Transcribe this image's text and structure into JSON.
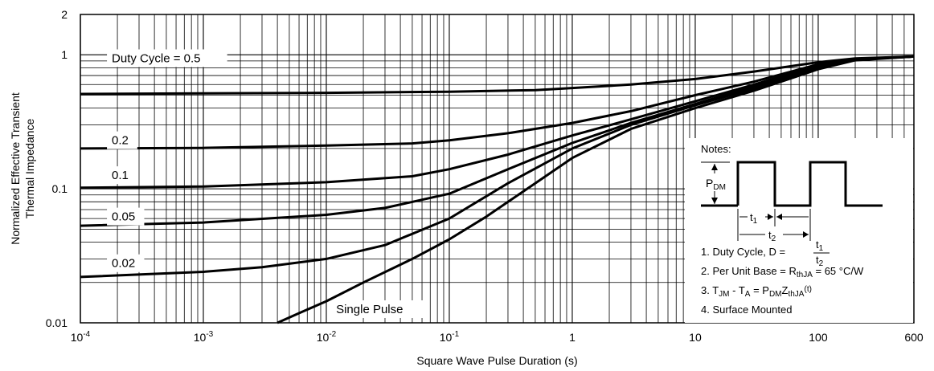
{
  "chart_data": {
    "type": "line",
    "title": "",
    "xlabel": "Square Wave Pulse Duration (s)",
    "ylabel_lines": [
      "Normalized Effective Transient",
      "Thermal Impedance"
    ],
    "x_scale": "log",
    "y_scale": "log",
    "xlim": [
      0.0001,
      600
    ],
    "ylim": [
      0.01,
      2
    ],
    "x_ticks": [
      {
        "value": 0.0001,
        "base": "10",
        "exp": "-4",
        "plain": ""
      },
      {
        "value": 0.001,
        "base": "10",
        "exp": "-3",
        "plain": ""
      },
      {
        "value": 0.01,
        "base": "10",
        "exp": "-2",
        "plain": ""
      },
      {
        "value": 0.1,
        "base": "10",
        "exp": "-1",
        "plain": ""
      },
      {
        "value": 1,
        "base": "",
        "exp": "",
        "plain": "1"
      },
      {
        "value": 10,
        "base": "",
        "exp": "",
        "plain": "10"
      },
      {
        "value": 100,
        "base": "",
        "exp": "",
        "plain": "100"
      },
      {
        "value": 600,
        "base": "",
        "exp": "",
        "plain": "600"
      }
    ],
    "y_ticks": [
      {
        "value": 0.01,
        "label": "0.01"
      },
      {
        "value": 0.1,
        "label": "0.1"
      },
      {
        "value": 1,
        "label": "1"
      },
      {
        "value": 2,
        "label": "2"
      }
    ],
    "grid": true,
    "series": [
      {
        "label": "Duty Cycle = 0.5",
        "label_pos": {
          "x": 0.00018,
          "y": 0.88
        },
        "x": [
          0.0001,
          0.001,
          0.01,
          0.1,
          0.5,
          1,
          3,
          10,
          30,
          100,
          200,
          600
        ],
        "y": [
          0.51,
          0.515,
          0.52,
          0.53,
          0.545,
          0.565,
          0.6,
          0.66,
          0.75,
          0.88,
          0.94,
          0.97
        ]
      },
      {
        "label": "0.2",
        "label_pos": {
          "x": 0.00018,
          "y": 0.215
        },
        "x": [
          0.0001,
          0.001,
          0.01,
          0.05,
          0.1,
          0.3,
          1,
          3,
          10,
          30,
          100,
          200,
          600
        ],
        "y": [
          0.2,
          0.202,
          0.21,
          0.218,
          0.23,
          0.26,
          0.31,
          0.38,
          0.5,
          0.63,
          0.85,
          0.93,
          0.97
        ]
      },
      {
        "label": "0.1",
        "label_pos": {
          "x": 0.00018,
          "y": 0.118
        },
        "x": [
          0.0001,
          0.001,
          0.01,
          0.05,
          0.1,
          0.3,
          1,
          3,
          10,
          30,
          100,
          200,
          600
        ],
        "y": [
          0.102,
          0.104,
          0.112,
          0.124,
          0.14,
          0.18,
          0.25,
          0.33,
          0.45,
          0.6,
          0.84,
          0.92,
          0.97
        ]
      },
      {
        "label": "0.05",
        "label_pos": {
          "x": 0.00018,
          "y": 0.058
        },
        "x": [
          0.0001,
          0.001,
          0.01,
          0.03,
          0.1,
          0.3,
          1,
          3,
          10,
          30,
          100,
          200,
          600
        ],
        "y": [
          0.053,
          0.056,
          0.064,
          0.072,
          0.092,
          0.14,
          0.22,
          0.31,
          0.43,
          0.58,
          0.82,
          0.92,
          0.97
        ]
      },
      {
        "label": "0.02",
        "label_pos": {
          "x": 0.00018,
          "y": 0.026
        },
        "x": [
          0.0001,
          0.001,
          0.003,
          0.01,
          0.03,
          0.1,
          0.3,
          1,
          3,
          10,
          30,
          100,
          200,
          600
        ],
        "y": [
          0.022,
          0.024,
          0.026,
          0.03,
          0.038,
          0.06,
          0.11,
          0.2,
          0.3,
          0.42,
          0.56,
          0.8,
          0.92,
          0.97
        ]
      },
      {
        "label": "Single Pulse",
        "label_pos": {
          "x": 0.012,
          "y": 0.0118
        },
        "x": [
          0.004,
          0.006,
          0.01,
          0.02,
          0.05,
          0.1,
          0.2,
          0.5,
          1,
          3,
          10,
          30,
          100,
          200,
          600
        ],
        "y": [
          0.01,
          0.0118,
          0.0145,
          0.02,
          0.03,
          0.042,
          0.062,
          0.11,
          0.17,
          0.28,
          0.4,
          0.54,
          0.78,
          0.91,
          0.97
        ]
      }
    ],
    "notes": {
      "title": "Notes:",
      "pdm_base": "P",
      "pdm_sub": "DM",
      "t1_base": "t",
      "t1_sub": "1",
      "t2_base": "t",
      "t2_sub": "2",
      "line1_prefix": "1. Duty Cycle, D =",
      "line2_prefix": "2. Per Unit Base = R",
      "line2_sub": "thJA",
      "line2_suffix": " = 65 °C/W",
      "line3_a": "3. T",
      "line3_a_sub": "JM",
      "line3_b": " - T",
      "line3_b_sub": "A",
      "line3_c": " = P",
      "line3_c_sub": "DM",
      "line3_d": "Z",
      "line3_d_sub": "thJA",
      "line3_e": "(t)",
      "line4": "4. Surface Mounted"
    }
  }
}
